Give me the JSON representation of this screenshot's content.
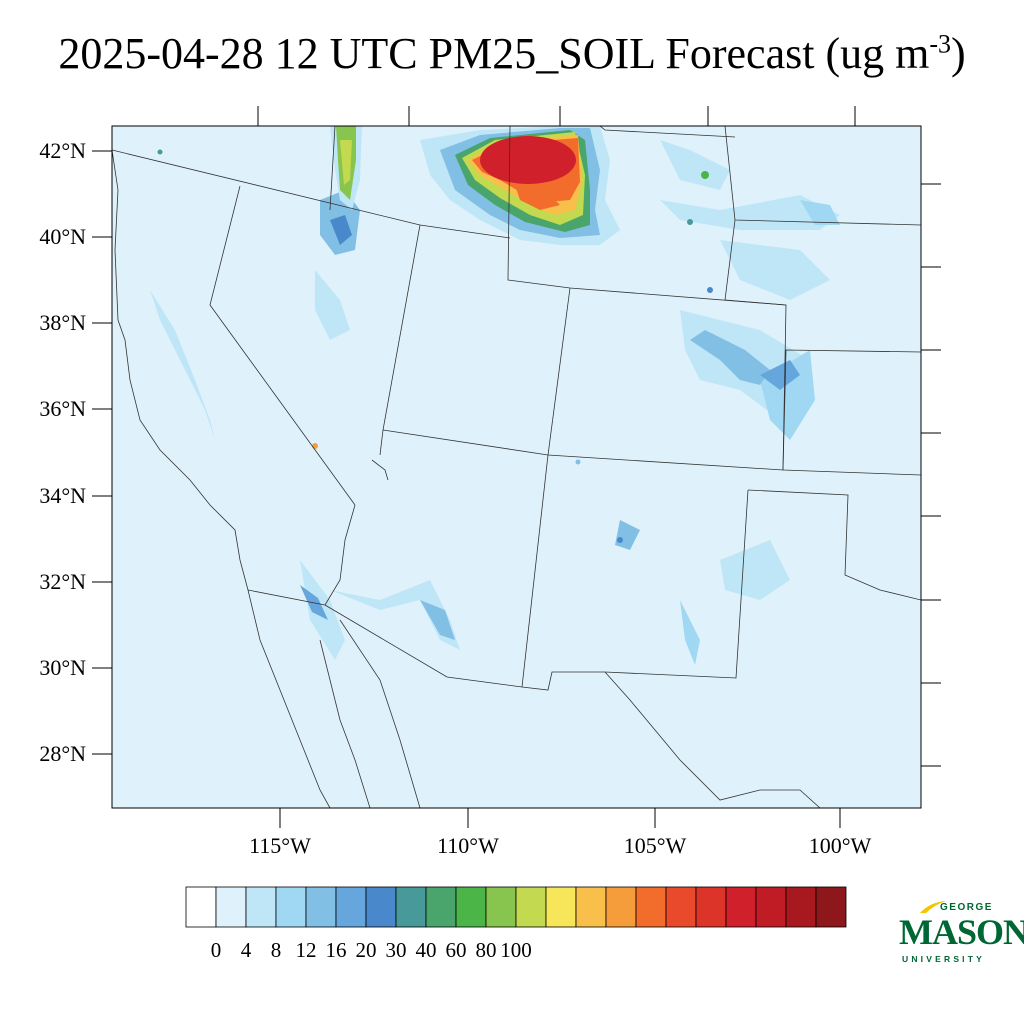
{
  "title": {
    "main": "2025-04-28 12 UTC PM25_SOIL Forecast (ug m",
    "sup": "-3",
    "close": ")"
  },
  "map": {
    "lat_ticks": [
      "42°N",
      "40°N",
      "38°N",
      "36°N",
      "34°N",
      "32°N",
      "30°N",
      "28°N"
    ],
    "lon_ticks": [
      "115°W",
      "110°W",
      "105°W",
      "100°W"
    ]
  },
  "colorbar": {
    "colors": [
      "#ffffff",
      "#dff2fb",
      "#bfe6f7",
      "#a0d8f3",
      "#82bfe5",
      "#65a6dc",
      "#4a88cc",
      "#47999a",
      "#49a56b",
      "#4bb548",
      "#88c54e",
      "#c2d950",
      "#f7e659",
      "#f8c04b",
      "#f69d3b",
      "#f26c2c",
      "#e84a2b",
      "#dd3429",
      "#d0202c",
      "#bf1c26",
      "#a8191f",
      "#8e171b"
    ],
    "labels": [
      "0",
      "4",
      "8",
      "12",
      "16",
      "20",
      "30",
      "40",
      "60",
      "80",
      "100"
    ]
  },
  "logo": {
    "top": "GEORGE",
    "main": "MASON",
    "bottom": "UNIVERSITY",
    "color": "#006633"
  }
}
